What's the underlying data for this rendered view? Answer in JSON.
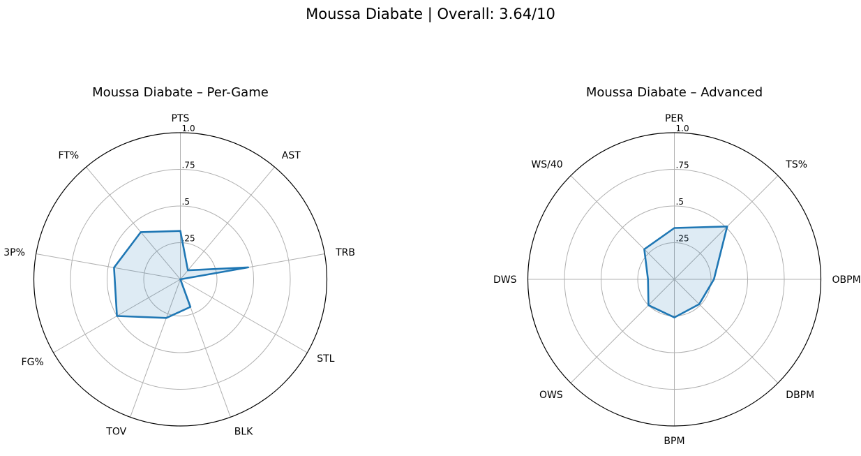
{
  "suptitle": "Moussa Diabate | Overall: 3.64/10",
  "colors": {
    "line": "#1f77b4",
    "fill": "#1f77b4"
  },
  "chart_data": [
    {
      "type": "radar",
      "title": "Moussa Diabate – Per-Game",
      "axes": [
        "PTS",
        "AST",
        "TRB",
        "STL",
        "BLK",
        "TOV",
        "FG%",
        "3P%",
        "FT%"
      ],
      "values": [
        0.33,
        0.08,
        0.47,
        0.0,
        0.2,
        0.28,
        0.5,
        0.46,
        0.42
      ],
      "range": [
        0,
        1
      ],
      "tick_values": [
        0.25,
        0.5,
        0.75,
        1.0
      ],
      "tick_labels": [
        ".25",
        ".5",
        ".75",
        "1.0"
      ],
      "grid": true
    },
    {
      "type": "radar",
      "title": "Moussa Diabate – Advanced",
      "axes": [
        "PER",
        "TS%",
        "OBPM",
        "DBPM",
        "BPM",
        "OWS",
        "DWS",
        "WS/40"
      ],
      "values": [
        0.35,
        0.51,
        0.27,
        0.24,
        0.26,
        0.25,
        0.18,
        0.29
      ],
      "range": [
        0,
        1
      ],
      "tick_values": [
        0.25,
        0.5,
        0.75,
        1.0
      ],
      "tick_labels": [
        ".25",
        ".5",
        ".75",
        "1.0"
      ],
      "grid": true
    }
  ]
}
